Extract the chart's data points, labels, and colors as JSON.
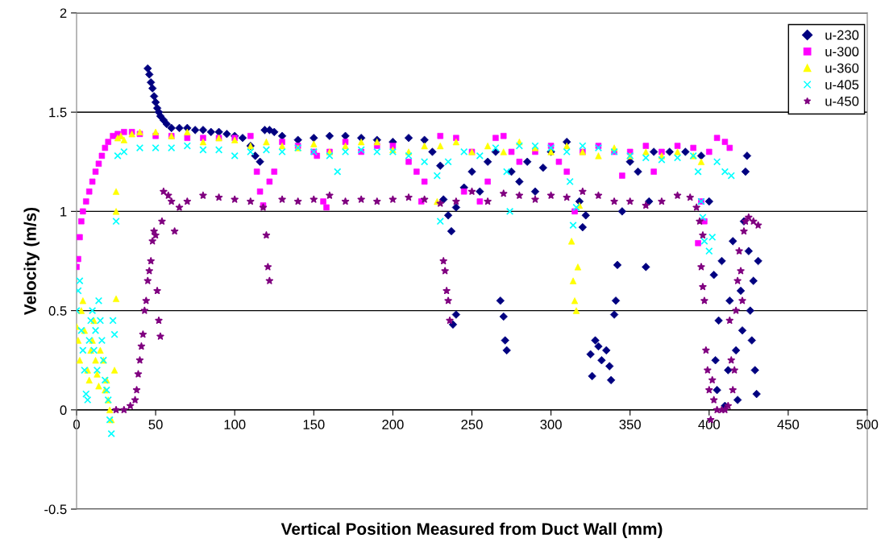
{
  "chart_data": {
    "type": "scatter",
    "xlabel": "Vertical Position Measured from Duct Wall (mm)",
    "ylabel": "Velocity (m/s)",
    "xlim": [
      0,
      500
    ],
    "xticks": [
      0,
      50,
      100,
      150,
      200,
      250,
      300,
      350,
      400,
      450,
      500
    ],
    "ylim": [
      -0.5,
      2
    ],
    "yticks": [
      -0.5,
      0,
      0.5,
      1,
      1.5,
      2
    ],
    "grid": "y",
    "legend": "top right",
    "series": [
      {
        "name": "u-230",
        "color": "#000080",
        "marker": "diamond",
        "x": [
          45,
          46,
          47,
          48,
          49,
          50,
          51,
          52,
          53,
          55,
          57,
          60,
          65,
          70,
          75,
          80,
          85,
          90,
          95,
          100,
          105,
          110,
          113,
          116,
          119,
          122,
          125,
          130,
          140,
          150,
          160,
          170,
          180,
          190,
          200,
          210,
          220,
          225,
          230,
          232,
          235,
          237,
          240,
          240,
          238,
          245,
          250,
          255,
          260,
          265,
          268,
          270,
          271,
          272,
          275,
          280,
          285,
          290,
          295,
          300,
          310,
          318,
          320,
          322,
          325,
          326,
          328,
          330,
          332,
          335,
          337,
          338,
          340,
          341,
          342,
          345,
          350,
          355,
          360,
          362,
          365,
          375,
          385,
          395,
          400,
          403,
          404,
          405,
          406,
          408,
          410,
          412,
          413,
          415,
          417,
          418,
          420,
          421,
          422,
          423,
          424,
          425,
          426,
          427,
          428,
          429,
          430,
          431
        ],
        "values": [
          1.72,
          1.69,
          1.65,
          1.62,
          1.58,
          1.55,
          1.52,
          1.5,
          1.48,
          1.46,
          1.44,
          1.42,
          1.42,
          1.42,
          1.41,
          1.41,
          1.4,
          1.4,
          1.39,
          1.38,
          1.37,
          1.33,
          1.28,
          1.25,
          1.41,
          1.41,
          1.4,
          1.38,
          1.36,
          1.37,
          1.38,
          1.38,
          1.37,
          1.36,
          1.35,
          1.37,
          1.36,
          1.3,
          1.23,
          1.06,
          0.98,
          0.9,
          1.02,
          0.48,
          0.43,
          1.12,
          1.2,
          1.1,
          1.25,
          1.3,
          0.55,
          0.47,
          0.35,
          0.3,
          1.2,
          1.15,
          1.25,
          1.1,
          1.22,
          1.3,
          1.35,
          1.05,
          0.92,
          0.98,
          0.28,
          0.17,
          0.35,
          0.32,
          0.25,
          0.3,
          0.22,
          0.15,
          0.48,
          0.55,
          0.73,
          1.0,
          1.25,
          1.2,
          0.72,
          1.05,
          1.3,
          1.3,
          1.3,
          1.28,
          1.05,
          0.68,
          0.25,
          0.1,
          0.45,
          0.75,
          0.02,
          0.2,
          0.55,
          0.85,
          0.3,
          0.05,
          0.6,
          0.4,
          0.95,
          1.2,
          1.28,
          0.8,
          0.5,
          0.35,
          0.65,
          0.2,
          0.08,
          0.75
        ]
      },
      {
        "name": "u-300",
        "color": "#ff00ff",
        "marker": "square",
        "x": [
          0,
          1,
          2,
          3,
          4,
          6,
          8,
          10,
          12,
          14,
          16,
          18,
          20,
          23,
          26,
          30,
          35,
          40,
          50,
          60,
          70,
          80,
          90,
          100,
          110,
          114,
          116,
          118,
          122,
          125,
          130,
          140,
          150,
          152,
          156,
          158,
          160,
          170,
          180,
          190,
          200,
          210,
          215,
          218,
          220,
          230,
          240,
          245,
          250,
          255,
          260,
          265,
          270,
          275,
          280,
          290,
          300,
          305,
          310,
          315,
          320,
          330,
          340,
          345,
          350,
          360,
          365,
          370,
          380,
          390,
          393,
          395,
          397,
          400,
          405,
          410,
          413
        ],
        "values": [
          0.72,
          0.76,
          0.87,
          0.95,
          1.0,
          1.05,
          1.1,
          1.15,
          1.2,
          1.24,
          1.28,
          1.32,
          1.35,
          1.38,
          1.39,
          1.4,
          1.4,
          1.39,
          1.38,
          1.38,
          1.37,
          1.37,
          1.37,
          1.37,
          1.38,
          1.2,
          1.1,
          1.03,
          1.15,
          1.2,
          1.35,
          1.33,
          1.3,
          1.28,
          1.05,
          1.02,
          1.3,
          1.35,
          1.3,
          1.33,
          1.33,
          1.25,
          1.2,
          1.05,
          1.15,
          1.38,
          1.37,
          1.1,
          1.3,
          1.05,
          1.15,
          1.37,
          1.38,
          1.3,
          1.25,
          1.3,
          1.33,
          1.25,
          1.2,
          1.0,
          1.3,
          1.33,
          1.3,
          1.18,
          1.3,
          1.33,
          1.2,
          1.3,
          1.33,
          1.32,
          0.84,
          1.05,
          0.95,
          1.3,
          1.37,
          1.35,
          1.32
        ]
      },
      {
        "name": "u-360",
        "color": "#ffff00",
        "marker": "triangle",
        "x": [
          0,
          1,
          2,
          3,
          4,
          5,
          7,
          8,
          9,
          10,
          11,
          12,
          13,
          14,
          15,
          17,
          18,
          19,
          20,
          21,
          22,
          24,
          25,
          25,
          25,
          26,
          28,
          30,
          35,
          40,
          50,
          60,
          70,
          80,
          90,
          100,
          110,
          120,
          130,
          140,
          150,
          160,
          170,
          180,
          190,
          200,
          210,
          220,
          228,
          230,
          240,
          250,
          260,
          270,
          280,
          290,
          300,
          310,
          313,
          314,
          315,
          316,
          317,
          318,
          320,
          330,
          340,
          350,
          360,
          370,
          380,
          390,
          395
        ],
        "values": [
          0.42,
          0.35,
          0.25,
          0.5,
          0.55,
          0.4,
          0.2,
          0.15,
          0.3,
          0.35,
          0.45,
          0.25,
          0.18,
          0.12,
          0.3,
          0.25,
          0.1,
          0.15,
          0.05,
          0.0,
          -0.05,
          0.2,
          0.56,
          1.1,
          1.0,
          1.37,
          1.38,
          1.36,
          1.39,
          1.4,
          1.4,
          1.38,
          1.4,
          1.35,
          1.37,
          1.36,
          1.33,
          1.35,
          1.33,
          1.32,
          1.34,
          1.3,
          1.33,
          1.35,
          1.35,
          1.31,
          1.3,
          1.33,
          1.05,
          1.33,
          1.35,
          1.3,
          1.33,
          1.3,
          1.35,
          1.32,
          1.3,
          1.33,
          0.85,
          0.65,
          0.55,
          0.5,
          0.72,
          1.03,
          1.3,
          1.28,
          1.32,
          1.28,
          1.3,
          1.28,
          1.3,
          1.28,
          1.25
        ]
      },
      {
        "name": "u-405",
        "color": "#00ffff",
        "marker": "cross",
        "x": [
          0,
          1,
          2,
          3,
          4,
          5,
          6,
          7,
          8,
          9,
          10,
          11,
          12,
          13,
          14,
          15,
          16,
          17,
          18,
          19,
          20,
          21,
          22,
          23,
          24,
          25,
          26,
          30,
          40,
          50,
          60,
          70,
          80,
          90,
          100,
          110,
          120,
          130,
          140,
          150,
          160,
          165,
          170,
          180,
          190,
          200,
          210,
          220,
          228,
          230,
          235,
          245,
          255,
          265,
          272,
          274,
          280,
          290,
          300,
          310,
          312,
          314,
          316,
          320,
          330,
          340,
          350,
          360,
          370,
          380,
          390,
          393,
          395,
          396,
          397,
          400,
          402,
          405,
          410,
          414
        ],
        "values": [
          0.5,
          0.6,
          0.65,
          0.4,
          0.3,
          0.2,
          0.08,
          0.05,
          0.35,
          0.45,
          0.5,
          0.3,
          0.4,
          0.2,
          0.55,
          0.45,
          0.35,
          0.25,
          0.15,
          0.1,
          0.05,
          -0.05,
          -0.12,
          0.45,
          0.38,
          0.95,
          1.28,
          1.3,
          1.32,
          1.32,
          1.32,
          1.33,
          1.31,
          1.31,
          1.28,
          1.3,
          1.31,
          1.3,
          1.32,
          1.3,
          1.28,
          1.2,
          1.3,
          1.31,
          1.3,
          1.3,
          1.28,
          1.25,
          1.18,
          0.95,
          1.25,
          1.3,
          1.28,
          1.32,
          1.2,
          1.0,
          1.33,
          1.33,
          1.32,
          1.3,
          1.15,
          0.93,
          1.02,
          1.33,
          1.32,
          1.3,
          1.28,
          1.27,
          1.26,
          1.27,
          1.28,
          1.2,
          1.05,
          0.97,
          0.85,
          0.8,
          0.87,
          1.25,
          1.2,
          1.18
        ]
      },
      {
        "name": "u-450",
        "color": "#800080",
        "marker": "star",
        "x": [
          25,
          30,
          34,
          37,
          38,
          39,
          40,
          41,
          42,
          43,
          44,
          45,
          46,
          47,
          48,
          49,
          50,
          51,
          52,
          53,
          54,
          55,
          58,
          60,
          62,
          65,
          70,
          80,
          90,
          100,
          110,
          118,
          120,
          121,
          122,
          130,
          140,
          150,
          160,
          170,
          180,
          190,
          200,
          210,
          220,
          230,
          232,
          233,
          234,
          235,
          236,
          240,
          250,
          260,
          270,
          280,
          290,
          300,
          310,
          320,
          330,
          340,
          350,
          360,
          370,
          380,
          388,
          392,
          394,
          396,
          395,
          396,
          397,
          398,
          399,
          400,
          401,
          402,
          403,
          405,
          408,
          410,
          412,
          413,
          414,
          415,
          416,
          417,
          418,
          419,
          420,
          421,
          422,
          423,
          425,
          428,
          431
        ],
        "values": [
          0.0,
          0.0,
          0.02,
          0.05,
          0.1,
          0.18,
          0.25,
          0.32,
          0.38,
          0.5,
          0.55,
          0.65,
          0.7,
          0.75,
          0.85,
          0.9,
          0.88,
          0.6,
          0.45,
          0.37,
          0.95,
          1.1,
          1.08,
          1.05,
          0.9,
          1.02,
          1.05,
          1.08,
          1.07,
          1.06,
          1.05,
          1.02,
          0.88,
          0.72,
          0.65,
          1.06,
          1.05,
          1.06,
          1.08,
          1.05,
          1.06,
          1.05,
          1.06,
          1.07,
          1.06,
          1.04,
          0.75,
          0.7,
          0.6,
          0.55,
          0.45,
          1.05,
          1.1,
          1.05,
          1.09,
          1.08,
          1.06,
          1.08,
          1.07,
          1.1,
          1.08,
          1.05,
          1.05,
          1.03,
          1.05,
          1.08,
          1.07,
          1.02,
          0.95,
          0.88,
          0.72,
          0.62,
          0.55,
          0.3,
          0.2,
          0.1,
          -0.05,
          0.15,
          0.05,
          0.0,
          0.0,
          0.0,
          0.02,
          0.45,
          0.25,
          0.1,
          0.2,
          0.5,
          0.65,
          0.8,
          0.7,
          0.55,
          0.9,
          0.95,
          0.97,
          0.95,
          0.93
        ]
      }
    ]
  }
}
